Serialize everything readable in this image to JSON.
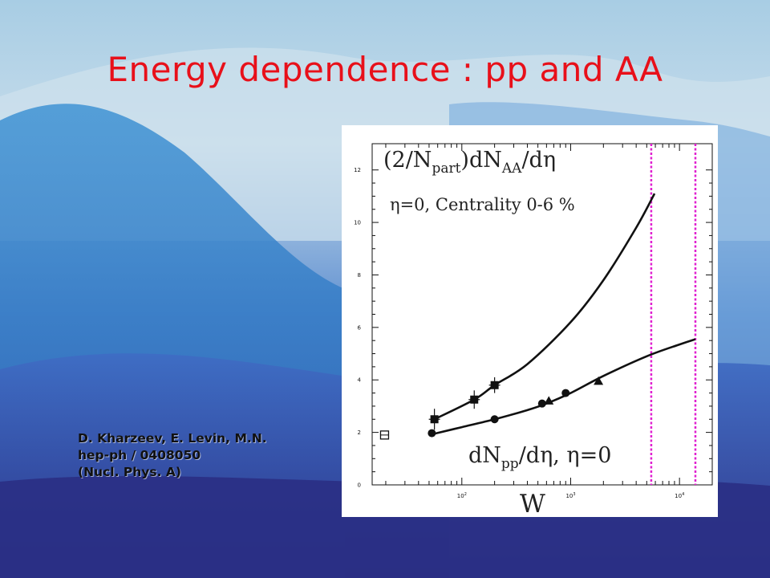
{
  "slide": {
    "title": "Energy dependence : pp and AA",
    "credit_lines": [
      "D. Kharzeev, E. Levin, M.N.",
      "hep-ph / 0408050",
      "(Nucl. Phys. A)"
    ]
  },
  "colors": {
    "title": "#e8101a",
    "vline": "#e020d0",
    "sky_top": "#9fc6df",
    "sky_bottom": "#2e3e92"
  },
  "chart_data": {
    "type": "scatter",
    "title": "",
    "xlabel": "W",
    "ylabel": "",
    "x_scale": "log",
    "xlim": [
      15,
      20000
    ],
    "ylim": [
      0,
      13
    ],
    "y_ticks": [
      0,
      2,
      4,
      6,
      8,
      10,
      12
    ],
    "y_tick_labels": [
      "0",
      "2",
      "4",
      "6",
      "8",
      "10",
      "12"
    ],
    "x_ticks": [
      100,
      1000,
      10000
    ],
    "x_tick_labels": [
      {
        "base": "10",
        "exp": "2"
      },
      {
        "base": "10",
        "exp": "3"
      },
      {
        "base": "10",
        "exp": "4"
      }
    ],
    "annotations": {
      "aa_formula": {
        "p1": "(2/N",
        "sub1": "part",
        "p2": ")dN",
        "sub2": "AA",
        "p3": "/dη"
      },
      "aa_condition": "η=0, Centrality 0-6 %",
      "pp_formula": {
        "p1": "dN",
        "sub1": "pp",
        "p2": "/dη,  η=0"
      }
    },
    "vertical_lines_x": [
      5500,
      14000
    ],
    "series": [
      {
        "name": "",
        "role": "AA fit",
        "kind": "line",
        "x": [
          56,
          130,
          200,
          400,
          1000,
          2000,
          4000,
          5900
        ],
        "y": [
          2.5,
          3.25,
          3.8,
          4.6,
          6.2,
          7.8,
          9.8,
          11.1
        ]
      },
      {
        "name": "",
        "role": "pp fit",
        "kind": "line",
        "x": [
          56,
          100,
          200,
          400,
          600,
          1000,
          2000,
          5000,
          10000,
          14000
        ],
        "y": [
          1.95,
          2.2,
          2.5,
          2.85,
          3.1,
          3.5,
          4.15,
          4.9,
          5.35,
          5.55
        ]
      },
      {
        "name": "",
        "role": "AA data",
        "kind": "square",
        "x": [
          56,
          130,
          200
        ],
        "y": [
          2.5,
          3.25,
          3.8
        ],
        "y_err": [
          0.4,
          0.35,
          0.3
        ]
      },
      {
        "name": "",
        "role": "pp circles",
        "kind": "circle",
        "x": [
          53,
          200,
          546,
          900
        ],
        "y": [
          1.97,
          2.5,
          3.1,
          3.5
        ]
      },
      {
        "name": "",
        "role": "pp triangles",
        "kind": "triangle",
        "x": [
          630,
          1800
        ],
        "y": [
          3.2,
          3.95
        ]
      },
      {
        "name": "",
        "role": "low energy point",
        "kind": "open-square",
        "x": [
          19.5
        ],
        "y": [
          1.9
        ]
      }
    ]
  }
}
